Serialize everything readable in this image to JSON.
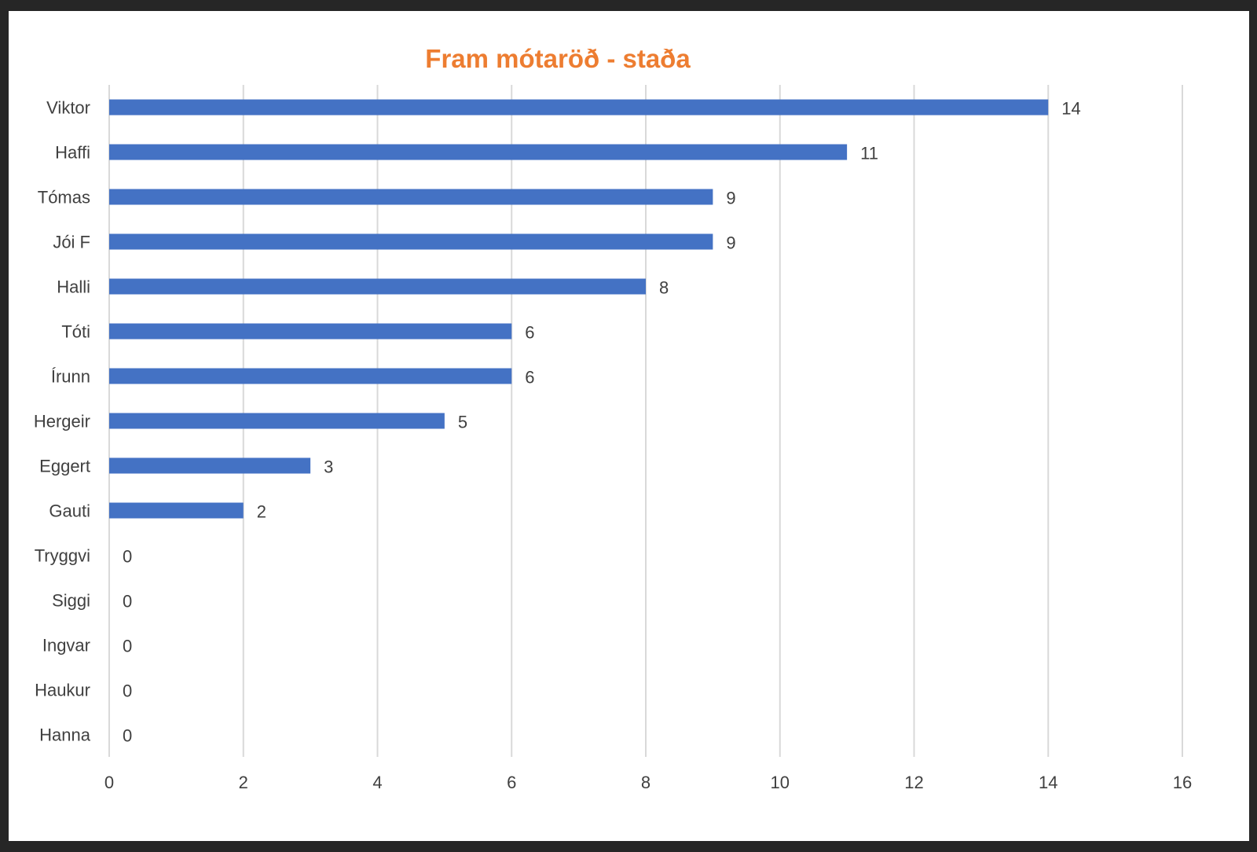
{
  "chart_data": {
    "type": "bar",
    "orientation": "horizontal",
    "title": "Fram mótaröð - staða",
    "categories": [
      "Viktor",
      "Haffi",
      "Tómas",
      "Jói F",
      "Halli",
      "Tóti",
      "Írunn",
      "Hergeir",
      "Eggert",
      "Gauti",
      "Tryggvi",
      "Siggi",
      "Ingvar",
      "Haukur",
      "Hanna"
    ],
    "values": [
      14,
      11,
      9,
      9,
      8,
      6,
      6,
      5,
      3,
      2,
      0,
      0,
      0,
      0,
      0
    ],
    "xlim": [
      0,
      16
    ],
    "xticks": [
      0,
      2,
      4,
      6,
      8,
      10,
      12,
      14,
      16
    ],
    "grid": "vertical",
    "legend": "none",
    "data_labels": true,
    "colors": {
      "bar": "#4472C4",
      "title": "#ED7D31",
      "grid": "#D9D9D9",
      "text": "#404040",
      "background": "#FFFFFF",
      "frame": "#262626"
    }
  }
}
